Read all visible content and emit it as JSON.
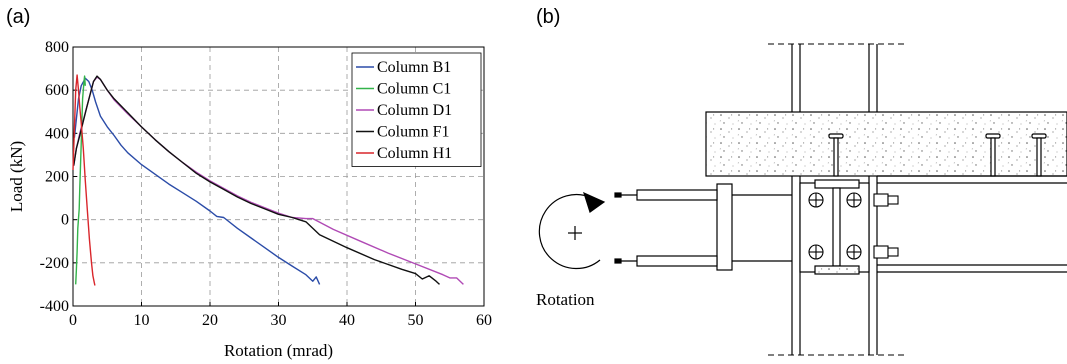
{
  "panels": {
    "a": "(a)",
    "b": "(b)"
  },
  "chart_data": {
    "type": "line",
    "xlabel": "Rotation (mrad)",
    "ylabel": "Load (kN)",
    "xlim": [
      0,
      60
    ],
    "ylim": [
      -400,
      800
    ],
    "xticks": [
      0,
      10,
      20,
      30,
      40,
      50,
      60
    ],
    "yticks": [
      -400,
      -200,
      0,
      200,
      400,
      600,
      800
    ],
    "grid": true,
    "legend_position": "top-right",
    "series": [
      {
        "name": "Column B1",
        "color": "#2b4ca8",
        "x": [
          0.2,
          0.8,
          1.2,
          1.8,
          2.3,
          2.8,
          3.3,
          4,
          5,
          6,
          7,
          8,
          10,
          12,
          14,
          16,
          18,
          20,
          21,
          22,
          24,
          26,
          28,
          30,
          32,
          34,
          35,
          35.5,
          36
        ],
        "y": [
          380,
          560,
          620,
          655,
          640,
          600,
          545,
          480,
          430,
          390,
          345,
          310,
          255,
          210,
          165,
          125,
          85,
          40,
          15,
          10,
          -40,
          -85,
          -130,
          -175,
          -215,
          -255,
          -285,
          -265,
          -300
        ]
      },
      {
        "name": "Column C1",
        "color": "#33b34a",
        "x": [
          0.4,
          0.5,
          0.6,
          0.7,
          0.9,
          1.0,
          1.1,
          1.2,
          1.3,
          1.4,
          1.6,
          1.7,
          1.8
        ],
        "y": [
          -300,
          -230,
          -150,
          -40,
          50,
          150,
          250,
          350,
          460,
          560,
          640,
          665,
          620
        ]
      },
      {
        "name": "Column D1",
        "color": "#b04ab5",
        "x": [
          0.1,
          0.5,
          1,
          2,
          3,
          3.5,
          4,
          5,
          6,
          8,
          10,
          12,
          14,
          16,
          18,
          20,
          22,
          24,
          26,
          28,
          30,
          32,
          34,
          35,
          38,
          42,
          46,
          50,
          54,
          55,
          56,
          57
        ],
        "y": [
          250,
          330,
          400,
          520,
          640,
          660,
          650,
          600,
          555,
          490,
          430,
          370,
          315,
          265,
          220,
          180,
          145,
          110,
          80,
          55,
          30,
          10,
          5,
          5,
          -45,
          -100,
          -155,
          -205,
          -255,
          -270,
          -270,
          -300
        ]
      },
      {
        "name": "Column F1",
        "color": "#111111",
        "x": [
          0.1,
          0.5,
          1,
          2,
          3,
          3.5,
          4,
          5,
          6,
          8,
          10,
          12,
          14,
          16,
          18,
          20,
          22,
          24,
          26,
          28,
          30,
          32,
          33,
          34,
          36,
          40,
          44,
          48,
          50,
          51,
          52,
          53,
          53.5
        ],
        "y": [
          250,
          330,
          390,
          520,
          640,
          665,
          650,
          600,
          560,
          495,
          430,
          370,
          315,
          265,
          215,
          175,
          140,
          105,
          75,
          50,
          25,
          10,
          0,
          -10,
          -70,
          -130,
          -185,
          -230,
          -250,
          -275,
          -260,
          -285,
          -300
        ]
      },
      {
        "name": "Column H1",
        "color": "#d9262b",
        "x": [
          0,
          0.2,
          0.4,
          0.6,
          0.8,
          1.0,
          1.2,
          1.5,
          1.8,
          2.1,
          2.4,
          2.7,
          2.9,
          3.1,
          3.2
        ],
        "y": [
          230,
          420,
          600,
          670,
          600,
          520,
          450,
          330,
          180,
          40,
          -90,
          -200,
          -260,
          -290,
          -305
        ]
      }
    ]
  },
  "diagram": {
    "rotation_label": "Rotation"
  }
}
